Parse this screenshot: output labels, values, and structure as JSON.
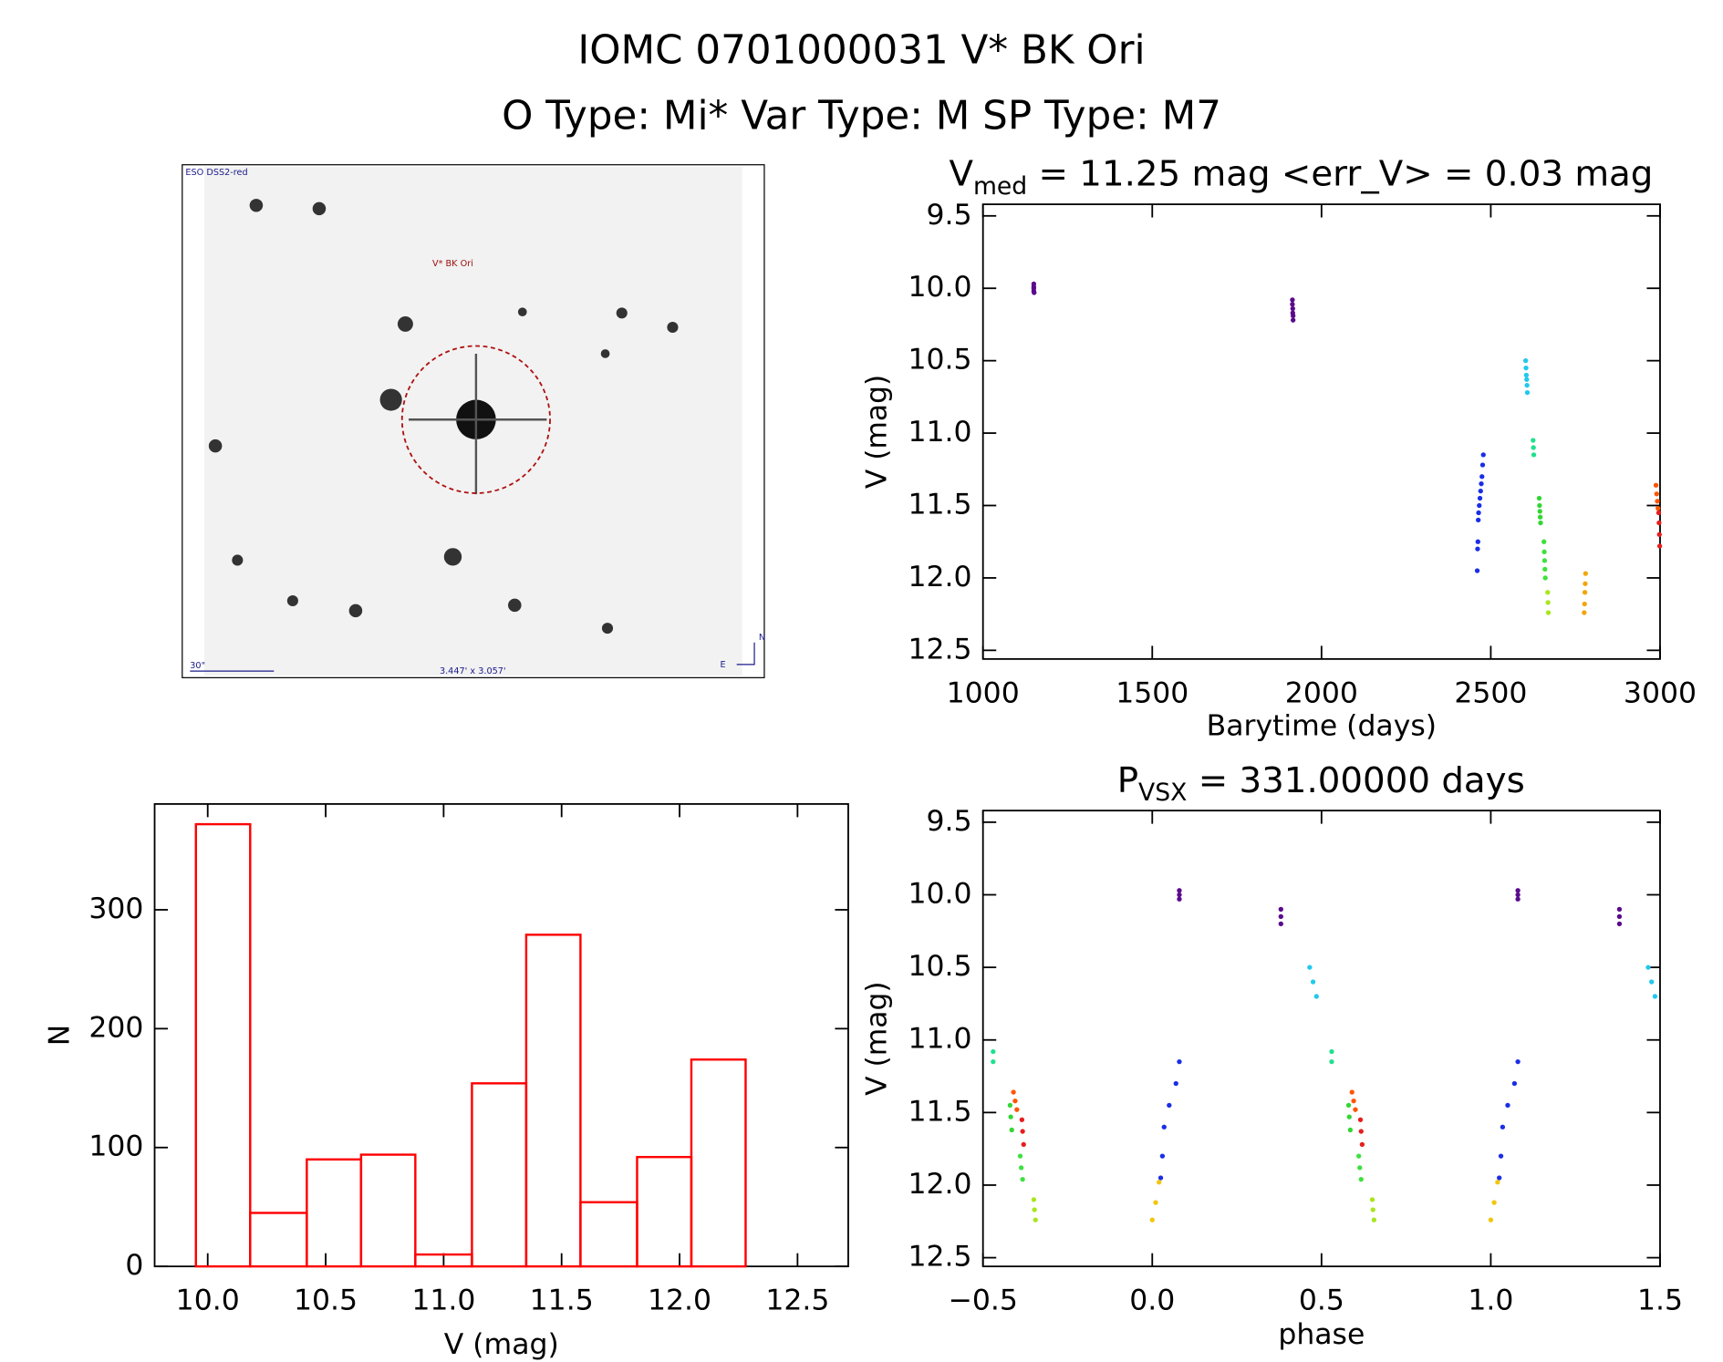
{
  "title": "IOMC 0701000031   V* BK Ori",
  "subtitle": "O Type: Mi*  Var Type: M  SP Type: M7",
  "image": {
    "survey_label": "ESO DSS2-red",
    "target_label": "V* BK Ori",
    "scale_label": "30\"",
    "size_label": "3.447' x 3.057'",
    "north": "N",
    "east": "E"
  },
  "chart_data": [
    {
      "type": "scatter",
      "title": {
        "text": "V",
        "sub": "med",
        "rest": " = 11.25 mag <err_V> = 0.03 mag"
      },
      "xlabel": "Barytime (days)",
      "ylabel": "V (mag)",
      "xlim": [
        1000,
        3000
      ],
      "xticks": [
        1000,
        1500,
        2000,
        2500,
        3000
      ],
      "ylim": [
        12.56,
        9.42
      ],
      "yticks": [
        9.5,
        {
          "value": 10.0,
          "label": "10.0"
        },
        10.5,
        {
          "value": 11.0,
          "label": "11.0"
        },
        11.5,
        {
          "value": 12.0,
          "label": "12.0"
        },
        12.5
      ],
      "series": [
        {
          "color": "#5a0a8c",
          "x": [
            1150,
            1150,
            1150,
            1150,
            1151
          ],
          "y": [
            9.97,
            9.99,
            10.0,
            10.02,
            10.03
          ]
        },
        {
          "color": "#5a0a8c",
          "x": [
            1914,
            1914,
            1915,
            1915,
            1916,
            1916
          ],
          "y": [
            10.08,
            10.11,
            10.14,
            10.17,
            10.19,
            10.22
          ]
        },
        {
          "color": "#1a2ee6",
          "x": [
            2460,
            2461,
            2462,
            2463,
            2464,
            2466,
            2468,
            2470,
            2472,
            2474,
            2476,
            2478
          ],
          "y": [
            11.95,
            11.8,
            11.75,
            11.6,
            11.55,
            11.5,
            11.45,
            11.4,
            11.35,
            11.3,
            11.22,
            11.15
          ]
        },
        {
          "color": "#22c8ee",
          "x": [
            2603,
            2604,
            2605,
            2606,
            2607,
            2608
          ],
          "y": [
            10.5,
            10.55,
            10.6,
            10.63,
            10.67,
            10.72
          ]
        },
        {
          "color": "#22e08c",
          "x": [
            2625,
            2626,
            2627
          ],
          "y": [
            11.05,
            11.1,
            11.15
          ]
        },
        {
          "color": "#33d633",
          "x": [
            2643,
            2644,
            2645,
            2646,
            2647
          ],
          "y": [
            11.45,
            11.5,
            11.54,
            11.58,
            11.62
          ]
        },
        {
          "color": "#3ee03e",
          "x": [
            2657,
            2658,
            2659,
            2660,
            2661
          ],
          "y": [
            11.75,
            11.82,
            11.88,
            11.94,
            12.0
          ]
        },
        {
          "color": "#a8e61e",
          "x": [
            2668,
            2669,
            2670
          ],
          "y": [
            12.1,
            12.17,
            12.24
          ]
        },
        {
          "color": "#f2a60c",
          "x": [
            2776,
            2777,
            2778,
            2779,
            2780
          ],
          "y": [
            12.24,
            12.18,
            12.1,
            12.04,
            11.97
          ]
        },
        {
          "color": "#ff5500",
          "x": [
            2988,
            2990,
            2992,
            2994
          ],
          "y": [
            11.36,
            11.42,
            11.47,
            11.52
          ]
        },
        {
          "color": "#e61e1e",
          "x": [
            2996,
            2997,
            2998,
            2999
          ],
          "y": [
            11.55,
            11.62,
            11.7,
            11.78
          ]
        }
      ]
    },
    {
      "type": "scatter",
      "title": {
        "text": "P",
        "sub": "VSX",
        "rest": " = 331.00000 days"
      },
      "xlabel": "phase",
      "ylabel": "V (mag)",
      "xlim": [
        -0.5,
        1.5
      ],
      "xticks": [
        {
          "value": -0.5,
          "label": "−0.5"
        },
        {
          "value": 0.0,
          "label": "0.0"
        },
        0.5,
        {
          "value": 1.0,
          "label": "1.0"
        },
        1.5
      ],
      "ylim": [
        12.56,
        9.42
      ],
      "yticks": [
        9.5,
        {
          "value": 10.0,
          "label": "10.0"
        },
        10.5,
        {
          "value": 11.0,
          "label": "11.0"
        },
        11.5,
        {
          "value": 12.0,
          "label": "12.0"
        },
        12.5
      ],
      "series": [
        {
          "color": "#5a0a8c",
          "x": [
            0.08,
            0.08,
            0.08,
            1.08,
            1.08,
            1.08
          ],
          "y": [
            9.97,
            10.0,
            10.03,
            9.97,
            10.0,
            10.03
          ]
        },
        {
          "color": "#5a0a8c",
          "x": [
            0.38,
            0.38,
            0.38,
            1.38,
            1.38,
            1.38
          ],
          "y": [
            10.1,
            10.15,
            10.2,
            10.1,
            10.15,
            10.2
          ]
        },
        {
          "color": "#22c8ee",
          "x": [
            0.465,
            0.475,
            0.485,
            1.465,
            1.475,
            1.485
          ],
          "y": [
            10.5,
            10.6,
            10.7,
            10.5,
            10.6,
            10.7
          ]
        },
        {
          "color": "#22e08c",
          "x": [
            -0.47,
            -0.47,
            0.53,
            0.53
          ],
          "y": [
            11.08,
            11.15,
            11.08,
            11.15
          ]
        },
        {
          "color": "#1a2ee6",
          "x": [
            0.025,
            0.03,
            0.035,
            0.05,
            0.07,
            0.08,
            1.025,
            1.03,
            1.035,
            1.05,
            1.07,
            1.08
          ],
          "y": [
            11.95,
            11.8,
            11.6,
            11.45,
            11.3,
            11.15,
            11.95,
            11.8,
            11.6,
            11.45,
            11.3,
            11.15
          ]
        },
        {
          "color": "#ff5500",
          "x": [
            -0.41,
            -0.405,
            -0.4,
            0.59,
            0.595,
            0.6
          ],
          "y": [
            11.36,
            11.42,
            11.48,
            11.36,
            11.42,
            11.48
          ]
        },
        {
          "color": "#33d633",
          "x": [
            -0.42,
            -0.418,
            -0.415,
            0.58,
            0.582,
            0.585
          ],
          "y": [
            11.45,
            11.53,
            11.62,
            11.45,
            11.53,
            11.62
          ]
        },
        {
          "color": "#e61e1e",
          "x": [
            -0.385,
            -0.383,
            -0.38,
            0.615,
            0.617,
            0.62
          ],
          "y": [
            11.55,
            11.63,
            11.72,
            11.55,
            11.63,
            11.72
          ]
        },
        {
          "color": "#3ee03e",
          "x": [
            -0.39,
            -0.387,
            -0.383,
            0.61,
            0.613,
            0.617
          ],
          "y": [
            11.8,
            11.88,
            11.96,
            11.8,
            11.88,
            11.96
          ]
        },
        {
          "color": "#a8e61e",
          "x": [
            -0.35,
            -0.348,
            -0.345,
            0.65,
            0.652,
            0.655
          ],
          "y": [
            12.1,
            12.17,
            12.24,
            12.1,
            12.17,
            12.24
          ]
        },
        {
          "color": "#f2c60c",
          "x": [
            0.0,
            0.01,
            0.02,
            1.0,
            1.01,
            1.02
          ],
          "y": [
            12.24,
            12.12,
            11.98,
            12.24,
            12.12,
            11.98
          ]
        }
      ]
    },
    {
      "type": "histogram",
      "xlabel": "V (mag)",
      "ylabel": "N",
      "color": "#ff0000",
      "bins": [
        9.95,
        10.18,
        10.42,
        10.65,
        10.88,
        11.12,
        11.35,
        11.58,
        11.82,
        12.05,
        12.28
      ],
      "counts": [
        372,
        45,
        90,
        94,
        10,
        154,
        279,
        54,
        92,
        174
      ],
      "xlim": [
        9.775,
        12.715
      ],
      "xticks": [
        {
          "value": 10.0,
          "label": "10.0"
        },
        10.5,
        {
          "value": 11.0,
          "label": "11.0"
        },
        11.5,
        {
          "value": 12.0,
          "label": "12.0"
        },
        12.5
      ],
      "ylim": [
        0,
        389
      ],
      "yticks": [
        0,
        100,
        200,
        300
      ]
    }
  ]
}
